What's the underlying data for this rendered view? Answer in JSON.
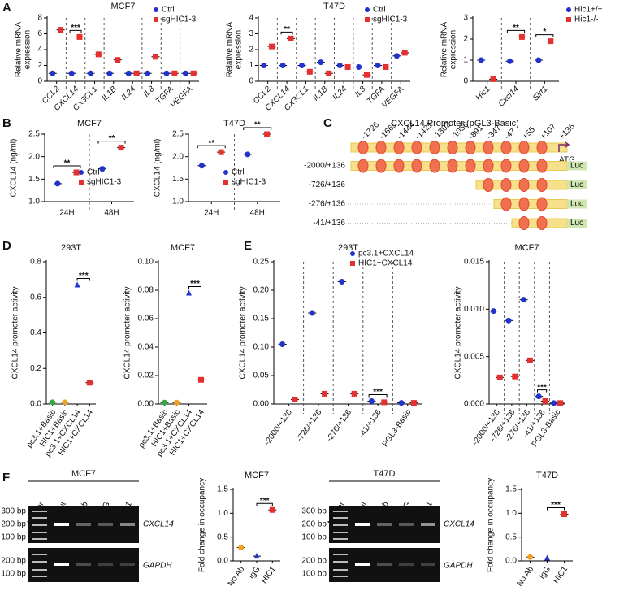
{
  "panel_labels": [
    "A",
    "B",
    "C",
    "D",
    "E",
    "F"
  ],
  "chart_data": [
    {
      "type": "dotplot",
      "title": "MCF7",
      "y_label": "Relative mRNA expression",
      "italic_categories": true,
      "separators": true,
      "legend": "top-right",
      "categories": [
        "CCL2",
        "CXCL14",
        "CX3CL1",
        "IL1B",
        "IL24",
        "IL8",
        "TGFA",
        "VEGFA"
      ],
      "series": [
        {
          "name": "Ctrl",
          "color": "#2233cc",
          "marker": "circle",
          "values": [
            1.0,
            1.0,
            1.0,
            1.0,
            1.0,
            1.0,
            1.0,
            1.0
          ]
        },
        {
          "name": "sgHIC1-3",
          "color": "#e53030",
          "marker": "square",
          "values": [
            6.5,
            5.6,
            3.4,
            2.7,
            1.0,
            3.1,
            1.0,
            1.0
          ]
        }
      ],
      "ylim": [
        0,
        8
      ],
      "yticks": [
        0,
        2,
        4,
        6,
        8
      ],
      "significance": [
        null,
        "***",
        null,
        null,
        null,
        null,
        null,
        null
      ]
    },
    {
      "type": "dotplot",
      "title": "T47D",
      "y_label": "Relative mRNA expression",
      "italic_categories": true,
      "separators": true,
      "legend": "top-right",
      "categories": [
        "CCL2",
        "CXCL14",
        "CX3CL1",
        "IL1B",
        "IL24",
        "IL8",
        "TGFA",
        "VEGFA"
      ],
      "series": [
        {
          "name": "Ctrl",
          "color": "#2233cc",
          "marker": "circle",
          "values": [
            1.0,
            1.0,
            1.0,
            1.2,
            1.0,
            0.9,
            1.0,
            1.6
          ]
        },
        {
          "name": "sgHIC1-3",
          "color": "#e53030",
          "marker": "square",
          "values": [
            2.2,
            2.7,
            0.6,
            0.5,
            0.9,
            0.4,
            0.9,
            1.8
          ]
        }
      ],
      "ylim": [
        0,
        4
      ],
      "yticks": [
        0,
        1,
        2,
        3,
        4
      ],
      "significance": [
        null,
        "**",
        null,
        null,
        null,
        null,
        null,
        null
      ]
    },
    {
      "type": "dotplot",
      "y_label": "Relative mRNA expression",
      "italic_categories": true,
      "separators": true,
      "legend": "right",
      "categories": [
        "Hic1",
        "Cxcl14",
        "Sirt1"
      ],
      "series": [
        {
          "name": "Hic1+/+",
          "color": "#2233cc",
          "marker": "circle",
          "values": [
            1.0,
            0.95,
            1.0
          ]
        },
        {
          "name": "Hic1-/-",
          "color": "#e53030",
          "marker": "square",
          "values": [
            0.1,
            2.1,
            1.9
          ]
        }
      ],
      "ylim": [
        0,
        3
      ],
      "yticks": [
        0,
        1,
        2,
        3
      ],
      "significance": [
        null,
        "**",
        "*"
      ]
    },
    {
      "type": "dotplot",
      "title": "MCF7",
      "y_label": "CXCL14 (ng/ml)",
      "separators": true,
      "legend": "bottom-right",
      "categories": [
        "24H",
        "48H"
      ],
      "series": [
        {
          "name": "Ctrl",
          "color": "#2233cc",
          "marker": "circle",
          "values": [
            1.4,
            1.73
          ]
        },
        {
          "name": "sgHIC1-3",
          "color": "#e53030",
          "marker": "square",
          "values": [
            1.65,
            2.2
          ]
        }
      ],
      "ylim": [
        1,
        2.5
      ],
      "yticks": [
        {
          "value": 1,
          "label": "1.0"
        },
        1.5,
        {
          "value": 2,
          "label": "2.0"
        },
        2.5
      ],
      "significance": [
        "**",
        "**"
      ]
    },
    {
      "type": "dotplot",
      "title": "T47D",
      "y_label": "CXCL14 (ng/ml)",
      "separators": true,
      "legend": "bottom-right",
      "categories": [
        "24H",
        "48H"
      ],
      "series": [
        {
          "name": "Ctrl",
          "color": "#2233cc",
          "marker": "circle",
          "values": [
            1.8,
            2.05
          ]
        },
        {
          "name": "sgHIC1-3",
          "color": "#e53030",
          "marker": "square",
          "values": [
            2.1,
            2.5
          ]
        }
      ],
      "ylim": [
        1,
        2.5
      ],
      "yticks": [
        {
          "value": 1,
          "label": "1.0"
        },
        1.5,
        {
          "value": 2,
          "label": "2.0"
        },
        2.5
      ],
      "significance": [
        "**",
        "**"
      ]
    },
    {
      "type": "dotplot",
      "title": "293T",
      "y_label": "CXCL14 promoter activity",
      "bracket": "between-categories",
      "categories": [
        "pc3.1+Basic",
        "HIC1+Basic",
        "pc3.1+CXCL14",
        "HIC1+CXCL14"
      ],
      "values": [
        0.01,
        0.01,
        0.67,
        0.12
      ],
      "colors": [
        "#33aa44",
        "#f0a020",
        "#2233cc",
        "#e53030"
      ],
      "markers": [
        "circle",
        "circle",
        "triangle",
        "square"
      ],
      "ylim": [
        0,
        0.8
      ],
      "yticks": [
        {
          "value": 0,
          "label": "0.0"
        },
        0.2,
        0.4,
        0.6,
        0.8
      ],
      "significance": [
        null,
        null,
        "***",
        null
      ]
    },
    {
      "type": "dotplot",
      "title": "MCF7",
      "y_label": "CXCL14 promoter activity",
      "bracket": "between-categories",
      "categories": [
        "pc3.1+Basic",
        "HIC1+Basic",
        "pc3.1+CXCL14",
        "HIC1+CXCL14"
      ],
      "values": [
        0.001,
        0.001,
        0.078,
        0.017
      ],
      "colors": [
        "#33aa44",
        "#f0a020",
        "#2233cc",
        "#e53030"
      ],
      "markers": [
        "circle",
        "circle",
        "triangle",
        "square"
      ],
      "ylim": [
        0,
        0.1
      ],
      "yticks": [
        {
          "value": 0,
          "label": "0.00"
        },
        0.02,
        0.04,
        0.06,
        0.08,
        {
          "value": 0.1,
          "label": "0.10"
        }
      ],
      "significance": [
        null,
        null,
        "***",
        null
      ]
    },
    {
      "type": "dotplot",
      "title": "293T",
      "y_label": "CXCL14 promoter activity",
      "separators": true,
      "legend": "top-right",
      "categories": [
        "-2000/+136",
        "-726/+136",
        "-276/+136",
        "-41/+136",
        "PGL3-Basic"
      ],
      "series": [
        {
          "name": "pc3.1+CXCL14",
          "color": "#2233cc",
          "marker": "circle",
          "values": [
            0.105,
            0.16,
            0.215,
            0.005,
            0.002
          ]
        },
        {
          "name": "HIC1+CXCL14",
          "color": "#e53030",
          "marker": "square",
          "values": [
            0.008,
            0.018,
            0.018,
            0.003,
            0.002
          ]
        }
      ],
      "ylim": [
        0,
        0.25
      ],
      "yticks": [
        {
          "value": 0,
          "label": "0.00"
        },
        0.05,
        {
          "value": 0.1,
          "label": "0.10"
        },
        0.15,
        {
          "value": 0.2,
          "label": "0.20"
        },
        0.25
      ],
      "significance": [
        null,
        null,
        null,
        "***",
        null
      ]
    },
    {
      "type": "dotplot",
      "title": "MCF7",
      "y_label": "CXCL14 promoter activity",
      "separators": true,
      "categories": [
        "-2000/+136",
        "-726/+136",
        "-276/+136",
        "-41/+136",
        "PGL3-Basic"
      ],
      "series": [
        {
          "color": "#2233cc",
          "marker": "circle",
          "values": [
            0.0098,
            0.0088,
            0.011,
            0.0008,
            0.0001
          ]
        },
        {
          "color": "#e53030",
          "marker": "square",
          "values": [
            0.0028,
            0.0029,
            0.0046,
            0.0003,
            0.0001
          ]
        }
      ],
      "ylim": [
        0,
        0.015
      ],
      "yticks": [
        {
          "value": 0,
          "label": "0.000"
        },
        0.005,
        {
          "value": 0.01,
          "label": "0.010"
        },
        0.015
      ],
      "significance": [
        null,
        null,
        null,
        "***",
        null
      ]
    },
    {
      "type": "dotplot",
      "title": "MCF7",
      "y_label": "Fold change in occupancy",
      "bracket": "between-categories",
      "categories": [
        "No Ab",
        "IgG",
        "HIC1"
      ],
      "values": [
        0.28,
        0.1,
        1.07
      ],
      "colors": [
        "#f0a020",
        "#2233cc",
        "#e53030"
      ],
      "markers": [
        "circle",
        "triangle",
        "square"
      ],
      "ylim": [
        0,
        1.5
      ],
      "yticks": [
        {
          "value": 0,
          "label": "0.0"
        },
        0.5,
        {
          "value": 1,
          "label": "1.0"
        },
        1.5
      ],
      "significance": [
        null,
        "***",
        null
      ]
    },
    {
      "type": "dotplot",
      "title": "T47D",
      "y_label": "Fold change in occupancy",
      "bracket": "between-categories",
      "categories": [
        "No Ab",
        "IgG",
        "HIC1"
      ],
      "values": [
        0.08,
        0.06,
        0.98
      ],
      "colors": [
        "#f0a020",
        "#2233cc",
        "#e53030"
      ],
      "markers": [
        "circle",
        "triangle",
        "square"
      ],
      "ylim": [
        0,
        1.5
      ],
      "yticks": [
        {
          "value": 0,
          "label": "0.0"
        },
        0.5,
        {
          "value": 1,
          "label": "1.0"
        },
        1.5
      ],
      "significance": [
        null,
        "***",
        null
      ]
    }
  ],
  "promoter": {
    "title": "CXCL14 Promoter (pGL3-Basic)",
    "sites": [
      "-1726",
      "-1665",
      "-1444",
      "-1421",
      "-1302",
      "-1056",
      "-891",
      "-347",
      "-47",
      "+55",
      "+107",
      "+136"
    ],
    "start_codon": "ATG",
    "constructs": [
      "-2000/+136",
      "-726/+136",
      "-276/+136",
      "-41/+136"
    ],
    "reporter": "Luc"
  },
  "gels": [
    {
      "title": "MCF7",
      "lanes": [
        "Marker",
        "Input",
        "No Ab",
        "IgG",
        "HIC1"
      ],
      "sizes_top": [
        "300 bp",
        "200 bp",
        "100 bp"
      ],
      "sizes_bottom": [
        "200 bp",
        "100 bp"
      ],
      "genes": [
        "CXCL14",
        "GAPDH"
      ]
    },
    {
      "title": "T47D",
      "lanes": [
        "Marker",
        "Input",
        "No Ab",
        "IgG",
        "HIC1"
      ],
      "sizes_top": [
        "300 bp",
        "200 bp",
        "100 bp"
      ],
      "sizes_bottom": [
        "200 bp",
        "100 bp"
      ],
      "genes": [
        "CXCL14",
        "GAPDH"
      ]
    }
  ]
}
